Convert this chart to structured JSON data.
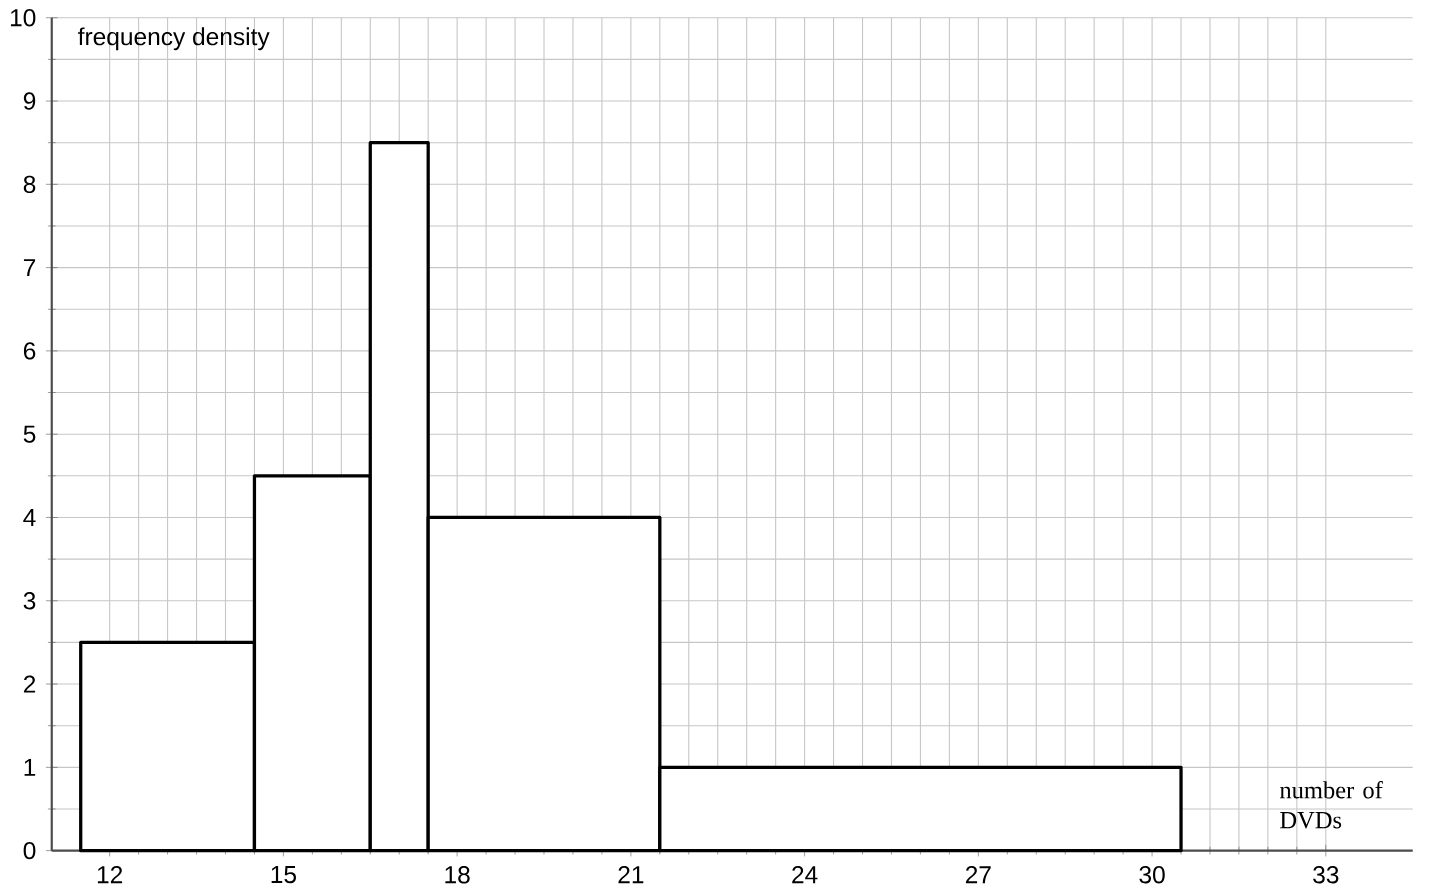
{
  "chart_data": {
    "type": "histogram",
    "xlabel": "number of DVDs",
    "ylabel": "frequency density",
    "bins": [
      11.5,
      14.5,
      16.5,
      17.5,
      21.5,
      30.5
    ],
    "values": [
      2.5,
      4.5,
      8.5,
      4,
      1
    ],
    "color": "#000000",
    "xlim": [
      11,
      34.5
    ],
    "ylim": [
      0,
      10
    ],
    "xticks": [
      12,
      15,
      18,
      21,
      24,
      27,
      30,
      33
    ],
    "yticks": [
      0,
      1,
      2,
      3,
      4,
      5,
      6,
      7,
      8,
      9,
      10
    ],
    "grid": true
  }
}
